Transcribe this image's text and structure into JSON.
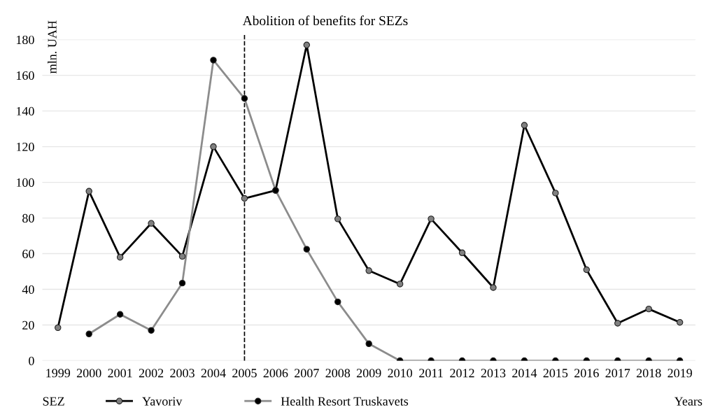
{
  "chart_data": {
    "type": "line",
    "categories": [
      "1999",
      "2000",
      "2001",
      "2002",
      "2003",
      "2004",
      "2005",
      "2006",
      "2007",
      "2008",
      "2009",
      "2010",
      "2011",
      "2012",
      "2013",
      "2014",
      "2015",
      "2016",
      "2017",
      "2018",
      "2019"
    ],
    "series": [
      {
        "name": "Yavoriv",
        "color": "#000000",
        "colors": [
          "#808080",
          "#808080",
          "#808080",
          "#808080",
          "#808080",
          "#808080",
          "#808080",
          "#808080",
          "#808080",
          "#808080",
          "#808080",
          "#808080",
          "#808080",
          "#808080",
          "#808080",
          "#808080",
          "#808080",
          "#808080",
          "#808080",
          "#808080",
          "#808080"
        ],
        "values": [
          18.5,
          95,
          58,
          77,
          58.5,
          120,
          91,
          95.5,
          177,
          79.5,
          50.5,
          43,
          79.5,
          60.5,
          41,
          132,
          94,
          51,
          21,
          29,
          21.5
        ]
      },
      {
        "name": "Health Resort Truskavets",
        "color": "#8c8c8c",
        "colors": [
          "#000000",
          "#000000",
          "#000000",
          "#000000",
          "#000000",
          "#000000",
          "#000000",
          "#000000",
          "#000000",
          "#000000",
          "#000000",
          "#000000",
          "#000000",
          "#000000",
          "#000000",
          "#000000",
          "#000000",
          "#000000",
          "#000000",
          "#000000",
          "#000000"
        ],
        "values": [
          null,
          15,
          26,
          17,
          43.5,
          168.5,
          147,
          95.5,
          62.5,
          33,
          9.5,
          0,
          0,
          0,
          0,
          0,
          0,
          0,
          0,
          0,
          0
        ]
      }
    ],
    "ylim": [
      0,
      180
    ],
    "yticks": [
      0,
      20,
      40,
      60,
      80,
      100,
      120,
      140,
      160,
      180
    ],
    "ylabel": "mln. UAH",
    "xlabel": "Years",
    "legend_title": "SEZ",
    "ref_lines": [
      {
        "axis": "x",
        "value": "2005",
        "label": "Abolition of benefits for SEZs",
        "color": "#000000",
        "line_style": "dashed"
      }
    ],
    "grid": "y",
    "legend": "bottom",
    "marker": "circle",
    "line_style": "solid"
  }
}
